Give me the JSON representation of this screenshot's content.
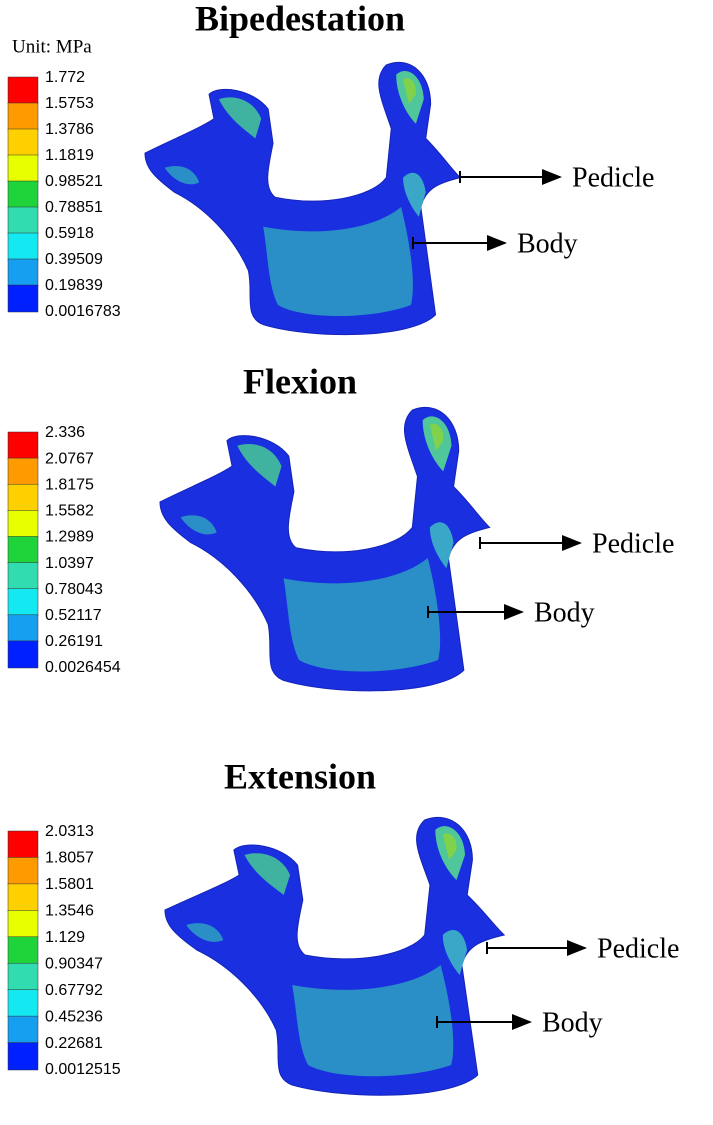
{
  "panels": [
    {
      "title": "Bipedestation",
      "unit": "Unit: MPa",
      "legend": [
        "1.772",
        "1.5753",
        "1.3786",
        "1.1819",
        "0.98521",
        "0.78851",
        "0.5918",
        "0.39509",
        "0.19839",
        "0.0016783"
      ],
      "annotations": [
        "Pedicle",
        "Body"
      ]
    },
    {
      "title": "Flexion",
      "legend": [
        "2.336",
        "2.0767",
        "1.8175",
        "1.5582",
        "1.2989",
        "1.0397",
        "0.78043",
        "0.52117",
        "0.26191",
        "0.0026454"
      ],
      "annotations": [
        "Pedicle",
        "Body"
      ]
    },
    {
      "title": "Extension",
      "legend": [
        "2.0313",
        "1.8057",
        "1.5801",
        "1.3546",
        "1.129",
        "0.90347",
        "0.67792",
        "0.45236",
        "0.22681",
        "0.0012515"
      ],
      "annotations": [
        "Pedicle",
        "Body"
      ]
    }
  ]
}
